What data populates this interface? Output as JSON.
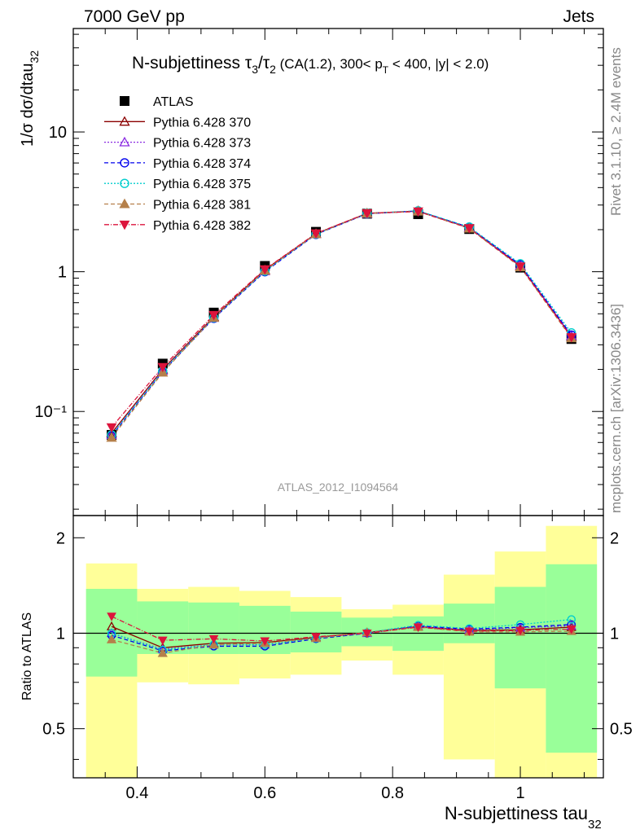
{
  "header": {
    "energy": "7000 GeV pp",
    "process": "Jets"
  },
  "side": {
    "rivet": "Rivet 3.1.10, ≥ 2.4M events",
    "mcplots": "mcplots.cern.ch [arXiv:1306.3436]"
  },
  "chart_data": {
    "type": "line",
    "title": "N-subjettiness τ3/τ2 (CA(1.2), 300< pT < 400, |y| < 2.0)",
    "title_parts": {
      "prefix": "N-subjettiness ",
      "tau": "τ",
      "sub3": "3",
      "slash": "/",
      "sub2": "2",
      "cond1": " (CA(1.2), 300< p",
      "subT": "T",
      "cond2": " < 400, |y| < 2.0)"
    },
    "analysis_label": "ATLAS_2012_I1094564",
    "xlabel": "N-subjettiness tau",
    "xlabel_sub": "32",
    "ylabel": "1/σ dσ/dtau",
    "ylabel_sub": "32",
    "ratio_ylabel": "Ratio to ATLAS",
    "xlim": [
      0.3,
      1.13
    ],
    "ylim": [
      0.018,
      55
    ],
    "yscale": "log",
    "ratio_ylim": [
      0.35,
      2.35
    ],
    "ratio_yscale": "log",
    "x_ticks": [
      "0.4",
      "0.6",
      "0.8",
      "1"
    ],
    "y_ticks": [
      "10⁻¹",
      "1",
      "10"
    ],
    "ratio_ticks": [
      "0.5",
      "1",
      "2"
    ],
    "x": [
      0.36,
      0.44,
      0.52,
      0.6,
      0.68,
      0.76,
      0.84,
      0.92,
      1.0,
      1.08
    ],
    "x_edges": [
      0.32,
      0.4,
      0.48,
      0.56,
      0.64,
      0.72,
      0.8,
      0.88,
      0.96,
      1.04,
      1.12
    ],
    "data": {
      "name": "ATLAS",
      "values": [
        0.068,
        0.22,
        0.51,
        1.1,
        1.93,
        2.6,
        2.58,
        2.02,
        1.07,
        0.33
      ],
      "band_green": [
        [
          0.73,
          1.38
        ],
        [
          0.86,
          1.26
        ],
        [
          0.86,
          1.25
        ],
        [
          0.86,
          1.22
        ],
        [
          0.87,
          1.17
        ],
        [
          0.91,
          1.12
        ],
        [
          0.88,
          1.13
        ],
        [
          0.93,
          1.24
        ],
        [
          0.67,
          1.4
        ],
        [
          0.42,
          1.65
        ]
      ],
      "band_yellow": [
        [
          0.3,
          1.66
        ],
        [
          0.7,
          1.38
        ],
        [
          0.69,
          1.4
        ],
        [
          0.72,
          1.36
        ],
        [
          0.74,
          1.3
        ],
        [
          0.82,
          1.19
        ],
        [
          0.74,
          1.23
        ],
        [
          0.4,
          1.53
        ],
        [
          0.35,
          1.81
        ],
        [
          0.3,
          2.18
        ]
      ]
    },
    "series": [
      {
        "name": "Pythia 6.428 370",
        "color": "#8b0000",
        "dash": "",
        "marker": "triangle-open",
        "values": [
          0.07,
          0.2,
          0.475,
          1.03,
          1.87,
          2.62,
          2.72,
          2.06,
          1.1,
          0.345
        ],
        "ratio": [
          1.05,
          0.9,
          0.93,
          0.935,
          0.97,
          1.005,
          1.05,
          1.02,
          1.025,
          1.045
        ]
      },
      {
        "name": "Pythia 6.428 373",
        "color": "#8a2be2",
        "dash": "2,2",
        "marker": "triangle-open",
        "values": [
          0.068,
          0.196,
          0.469,
          1.01,
          1.86,
          2.6,
          2.71,
          2.07,
          1.11,
          0.348
        ],
        "ratio": [
          1.0,
          0.89,
          0.92,
          0.92,
          0.965,
          1.0,
          1.05,
          1.025,
          1.04,
          1.055
        ]
      },
      {
        "name": "Pythia 6.428 374",
        "color": "#0000ee",
        "dash": "5,3",
        "marker": "circle-open",
        "values": [
          0.067,
          0.193,
          0.464,
          1.0,
          1.85,
          2.6,
          2.72,
          2.08,
          1.12,
          0.352
        ],
        "ratio": [
          0.985,
          0.88,
          0.91,
          0.91,
          0.96,
          1.0,
          1.055,
          1.03,
          1.045,
          1.065
        ]
      },
      {
        "name": "Pythia 6.428 375",
        "color": "#00cdcd",
        "dash": "2,2",
        "marker": "circle-open",
        "values": [
          0.068,
          0.195,
          0.469,
          1.01,
          1.86,
          2.61,
          2.73,
          2.09,
          1.14,
          0.365
        ],
        "ratio": [
          1.0,
          0.885,
          0.92,
          0.92,
          0.965,
          1.005,
          1.06,
          1.035,
          1.065,
          1.105
        ]
      },
      {
        "name": "Pythia 6.428 381",
        "color": "#b5804b",
        "dash": "5,3",
        "marker": "triangle-filled",
        "values": [
          0.065,
          0.19,
          0.469,
          1.02,
          1.86,
          2.61,
          2.7,
          2.04,
          1.08,
          0.335
        ],
        "ratio": [
          0.955,
          0.865,
          0.92,
          0.93,
          0.965,
          1.005,
          1.045,
          1.01,
          1.01,
          1.015
        ]
      },
      {
        "name": "Pythia 6.428 382",
        "color": "#dc143c",
        "dash": "6,2,1,2",
        "marker": "triangle-down-filled",
        "values": [
          0.077,
          0.208,
          0.49,
          1.04,
          1.88,
          2.62,
          2.7,
          2.05,
          1.09,
          0.34
        ],
        "ratio": [
          1.13,
          0.95,
          0.96,
          0.945,
          0.975,
          1.0,
          1.045,
          1.015,
          1.02,
          1.03
        ]
      }
    ],
    "legend_position": "top-left",
    "grid": false
  }
}
